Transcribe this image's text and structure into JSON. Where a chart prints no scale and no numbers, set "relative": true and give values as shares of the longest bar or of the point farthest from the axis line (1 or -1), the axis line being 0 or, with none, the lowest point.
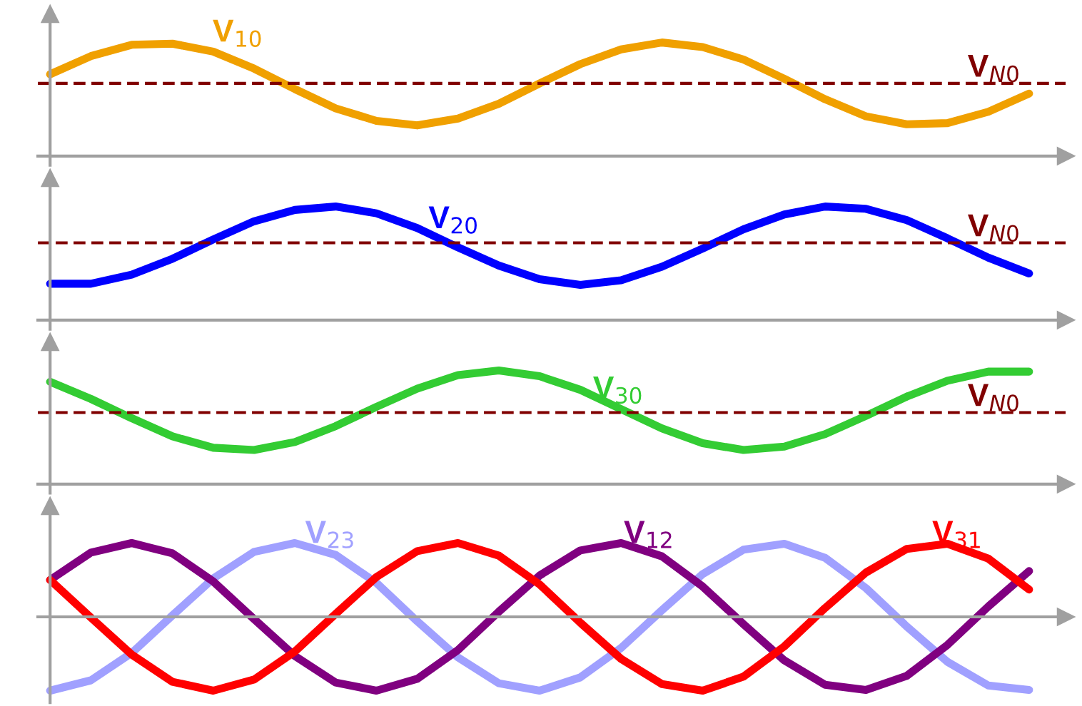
{
  "chart_data": [
    {
      "type": "line",
      "relative": true,
      "categories": [
        null,
        null,
        null,
        null,
        null,
        null,
        null,
        null,
        null,
        null,
        null,
        null,
        null,
        null,
        null,
        null,
        null,
        null,
        null,
        null,
        null,
        null,
        null,
        null,
        null
      ],
      "series": [
        {
          "name": "V$_{10}$",
          "color": "#f0a000",
          "values": [
            0.72,
            0.88,
            0.98,
            0.99,
            0.92,
            0.77,
            0.59,
            0.42,
            0.31,
            0.27,
            0.33,
            0.46,
            0.64,
            0.81,
            0.94,
            1.0,
            0.96,
            0.85,
            0.68,
            0.5,
            0.35,
            0.28,
            0.29,
            0.39,
            0.55
          ]
        }
      ],
      "ref_lines": [
        {
          "axis": "y",
          "value": 0.64,
          "label": "V$_{N0}$",
          "color": "#800000",
          "line_style": "dashed"
        }
      ]
    },
    {
      "type": "line",
      "relative": true,
      "categories": [
        null,
        null,
        null,
        null,
        null,
        null,
        null,
        null,
        null,
        null,
        null,
        null,
        null,
        null,
        null,
        null,
        null,
        null,
        null,
        null,
        null,
        null,
        null,
        null,
        null
      ],
      "series": [
        {
          "name": "V$_{20}$",
          "color": "#0000ff",
          "values": [
            0.32,
            0.32,
            0.4,
            0.54,
            0.71,
            0.87,
            0.97,
            1.0,
            0.94,
            0.81,
            0.64,
            0.48,
            0.36,
            0.31,
            0.35,
            0.47,
            0.63,
            0.8,
            0.93,
            1.0,
            0.98,
            0.88,
            0.72,
            0.55,
            0.41
          ]
        }
      ],
      "ref_lines": [
        {
          "axis": "y",
          "value": 0.68,
          "label": "V$_{N0}$",
          "color": "#800000",
          "line_style": "dashed"
        }
      ]
    },
    {
      "type": "line",
      "relative": true,
      "categories": [
        null,
        null,
        null,
        null,
        null,
        null,
        null,
        null,
        null,
        null,
        null,
        null,
        null,
        null,
        null,
        null,
        null,
        null,
        null,
        null,
        null,
        null,
        null,
        null,
        null
      ],
      "series": [
        {
          "name": "V$_{30}$",
          "color": "#33cc33",
          "values": [
            0.9,
            0.75,
            0.58,
            0.42,
            0.32,
            0.3,
            0.37,
            0.51,
            0.68,
            0.84,
            0.96,
            1.0,
            0.95,
            0.83,
            0.66,
            0.49,
            0.36,
            0.3,
            0.33,
            0.44,
            0.6,
            0.77,
            0.91,
            0.99,
            0.99
          ]
        }
      ],
      "ref_lines": [
        {
          "axis": "y",
          "value": 0.63,
          "label": "V$_{N0}$",
          "color": "#800000",
          "line_style": "dashed"
        }
      ]
    },
    {
      "type": "line",
      "relative": true,
      "categories": [
        null,
        null,
        null,
        null,
        null,
        null,
        null,
        null,
        null,
        null,
        null,
        null,
        null,
        null,
        null,
        null,
        null,
        null,
        null,
        null,
        null,
        null,
        null,
        null,
        null
      ],
      "series": [
        {
          "name": "V$_{23}$",
          "color": "#a0a0ff",
          "values": [
            -1.0,
            -0.86,
            -0.49,
            0.02,
            0.52,
            0.88,
            1.0,
            0.84,
            0.46,
            -0.06,
            -0.55,
            -0.9,
            -1.0,
            -0.82,
            -0.42,
            0.09,
            0.58,
            0.91,
            0.99,
            0.8,
            0.39,
            -0.13,
            -0.61,
            -0.93,
            -0.99
          ]
        },
        {
          "name": "V$_{12}$",
          "color": "#800080",
          "values": [
            0.5,
            0.87,
            1.0,
            0.86,
            0.48,
            -0.03,
            -0.53,
            -0.89,
            -1.0,
            -0.84,
            -0.45,
            0.07,
            0.56,
            0.9,
            1.0,
            0.82,
            0.41,
            -0.1,
            -0.59,
            -0.92,
            -0.99,
            -0.8,
            -0.38,
            0.14,
            0.62
          ]
        },
        {
          "name": "V$_{31}$",
          "color": "#ff0000",
          "values": [
            0.5,
            -0.01,
            -0.51,
            -0.88,
            -1.0,
            -0.85,
            -0.47,
            0.04,
            0.54,
            0.89,
            1.0,
            0.83,
            0.44,
            -0.08,
            -0.57,
            -0.91,
            -1.0,
            -0.81,
            -0.4,
            0.12,
            0.6,
            0.92,
            0.99,
            0.79,
            0.37
          ]
        }
      ]
    }
  ]
}
